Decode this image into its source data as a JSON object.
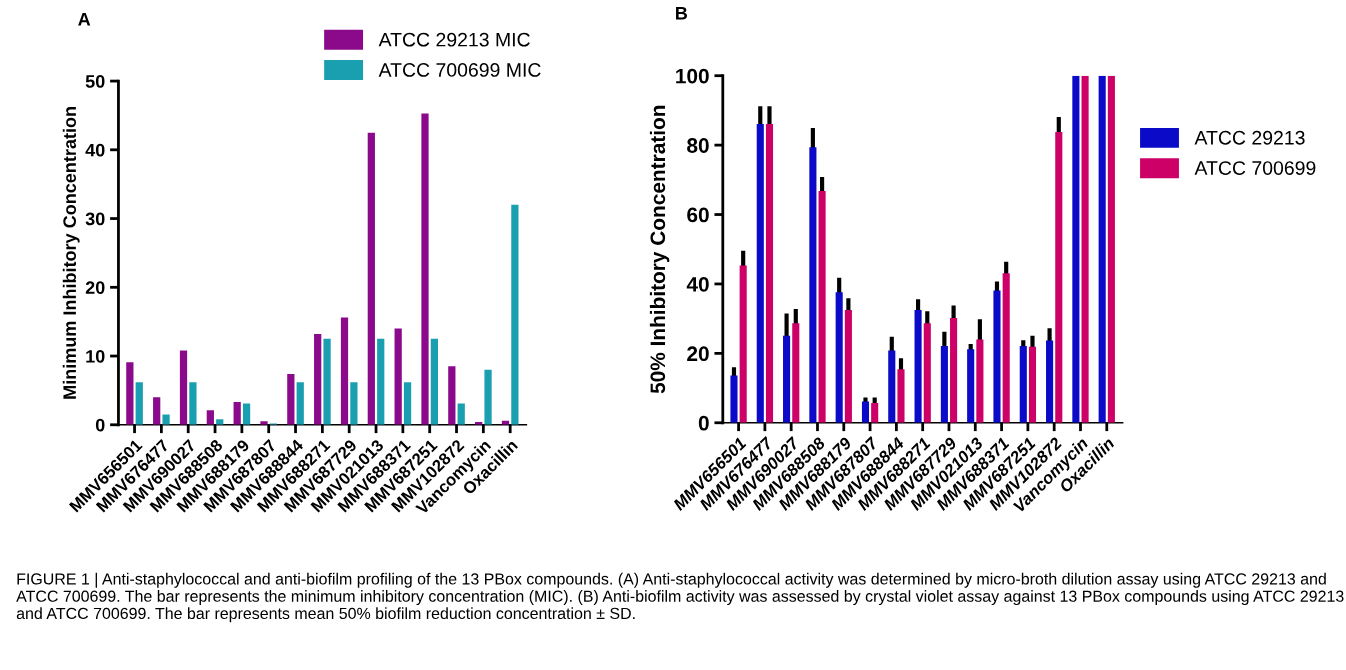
{
  "chart_data": [
    {
      "type": "bar",
      "ylabel": "Minimum Inhibitory Concentration",
      "annotations": [
        "A",
        "FIGURE 1 | Anti-staphylococcal and anti-biofilm profiling of the 13 PBox compounds. (A) Anti-staphylococcal activity was determined by micro-broth dilution assay using ATCC 29213 and ATCC 700699. The bar represents the minimum inhibitory concentration (MIC). (B) Anti-biofilm activity was assessed by crystal violet assay against 13 PBox compounds using ATCC 29213 and ATCC 700699. The bar represents mean 50% biofilm reduction concentration ± SD."
      ],
      "categories": [
        "MMV656501",
        "MMV676477",
        "MMV690027",
        "MMV688508",
        "MMV688179",
        "MMV687807",
        "MMV688844",
        "MMV688271",
        "MMV687729",
        "MMV021013",
        "MMV688371",
        "MMV687251",
        "MMV102872",
        "Vancomycin",
        "Oxacillin"
      ],
      "series": [
        {
          "name": "ATCC 29213 MIC",
          "color": "#8b0a8b",
          "values": [
            9.1,
            4.0,
            10.8,
            2.1,
            3.3,
            0.5,
            7.4,
            13.2,
            15.6,
            42.5,
            14.0,
            45.3,
            8.5,
            0.4,
            0.6
          ]
        },
        {
          "name": "ATCC 700699 MIC",
          "color": "#1a9fb0",
          "values": [
            6.2,
            1.5,
            6.2,
            0.8,
            3.1,
            0.2,
            6.2,
            12.5,
            6.2,
            12.5,
            6.2,
            12.5,
            3.1,
            8.0,
            32.0
          ]
        }
      ],
      "ylim": [
        0,
        50
      ],
      "yticks": [
        0,
        10,
        20,
        30,
        40,
        50
      ],
      "grid": false,
      "legend": "top right"
    },
    {
      "type": "bar",
      "ylabel": "50% Inhibitory Concentration",
      "annotations": [
        "B"
      ],
      "categories": [
        "MMV656501",
        "MMV676477",
        "MMV690027",
        "MMV688508",
        "MMV688179",
        "MMV687807",
        "MMV688844",
        "MMV688271",
        "MMV687729",
        "MMV021013",
        "MMV688371",
        "MMV687251",
        "MMV102872",
        "Vancomycin",
        "Oxacillin"
      ],
      "series": [
        {
          "name": "ATCC 29213",
          "color": "#0a0ac8",
          "values": [
            13.6,
            86.1,
            25.1,
            79.4,
            37.6,
            6.1,
            20.8,
            32.5,
            22.1,
            21.2,
            38.1,
            22.1,
            23.7,
            100,
            100
          ],
          "errors": [
            2.4,
            5.1,
            6.4,
            5.5,
            4.2,
            1.2,
            4.0,
            3.1,
            4.1,
            1.5,
            2.6,
            1.7,
            3.5,
            null,
            null
          ]
        },
        {
          "name": "ATCC 700699",
          "color": "#cc0066",
          "values": [
            45.3,
            86.1,
            28.7,
            66.8,
            32.5,
            5.7,
            15.4,
            28.7,
            30.2,
            24.0,
            43.1,
            21.9,
            83.8,
            100,
            100
          ],
          "errors": [
            4.3,
            5.1,
            4.1,
            4.0,
            3.4,
            1.6,
            3.2,
            3.4,
            3.6,
            5.8,
            3.3,
            3.2,
            4.3,
            null,
            null
          ]
        }
      ],
      "ylim": [
        0,
        100
      ],
      "yticks": [
        0,
        20,
        40,
        60,
        80,
        100
      ],
      "grid": false,
      "legend": "right"
    }
  ]
}
